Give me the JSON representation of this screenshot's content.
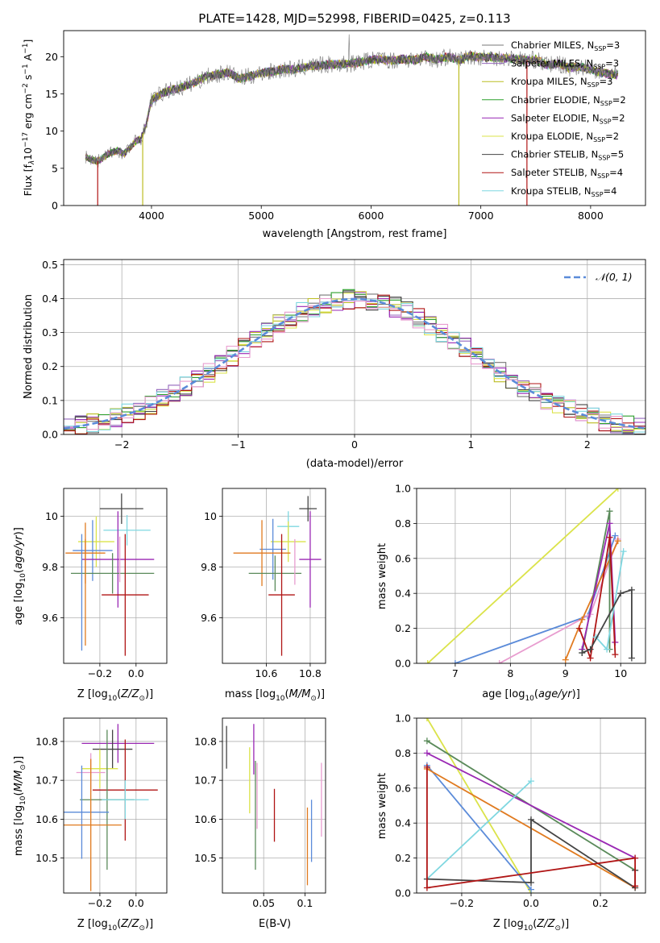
{
  "figure_title": "PLATE=1428, MJD=52998, FIBERID=0425, z=0.113",
  "colors": {
    "Chabrier MILES": "#777777",
    "Salpeter MILES": "#9467bd",
    "Kroupa MILES": "#bcbd22",
    "Chabrier ELODIE": "#2ca02c",
    "Salpeter ELODIE": "#9a28b4",
    "Kroupa ELODIE": "#dbe34a",
    "Chabrier STELIB": "#444444",
    "Salpeter STELIB": "#b01515",
    "Kroupa STELIB": "#7fd7e0",
    "normal_curve": "#5b8bd9"
  },
  "chart_data": [
    {
      "id": "spectrum",
      "type": "line",
      "title": "PLATE=1428, MJD=52998, FIBERID=0425, z=0.113",
      "xlabel": "wavelength [Angstrom, rest frame]",
      "ylabel_parts": [
        "Flux [f",
        "λ",
        "10",
        "−17",
        " erg cm",
        "−2",
        " s",
        "−1",
        " A",
        "−1",
        "]"
      ],
      "xlim": [
        3200,
        8500
      ],
      "ylim": [
        0,
        23.5
      ],
      "xticks": [
        4000,
        5000,
        6000,
        7000,
        8000
      ],
      "yticks": [
        0,
        5,
        10,
        15,
        20
      ],
      "grid": false,
      "legend": "right",
      "series_base": {
        "x": [
          3400,
          3450,
          3500,
          3550,
          3600,
          3650,
          3700,
          3750,
          3800,
          3850,
          3900,
          3950,
          4000,
          4100,
          4200,
          4300,
          4400,
          4500,
          4600,
          4700,
          4800,
          4900,
          5000,
          5100,
          5200,
          5300,
          5400,
          5500,
          5600,
          5700,
          5800,
          5900,
          6000,
          6100,
          6200,
          6300,
          6400,
          6500,
          6600,
          6700,
          6800,
          6900,
          7000,
          7100,
          7200,
          7300,
          7400,
          7500,
          7600,
          7700,
          7800,
          7900,
          8000,
          8100,
          8250
        ],
        "y": [
          6.6,
          6.2,
          5.9,
          6.3,
          6.9,
          7.2,
          7.4,
          6.9,
          7.7,
          8.6,
          8.9,
          10.8,
          14.2,
          15.1,
          15.6,
          16.0,
          16.6,
          17.3,
          17.6,
          17.9,
          17.0,
          17.4,
          17.8,
          18.0,
          18.3,
          18.3,
          18.6,
          18.8,
          18.9,
          19.0,
          19.0,
          19.3,
          19.6,
          19.6,
          19.5,
          19.7,
          19.5,
          20.0,
          19.6,
          20.0,
          19.5,
          20.1,
          19.9,
          20.0,
          19.8,
          19.8,
          19.5,
          19.6,
          18.9,
          19.1,
          18.5,
          18.7,
          18.3,
          17.8,
          17.6
        ]
      },
      "legend_entries": [
        {
          "label": "Chabrier MILES, N",
          "sub": "SSP",
          "tail": "=3"
        },
        {
          "label": "Salpeter MILES, N",
          "sub": "SSP",
          "tail": "=3"
        },
        {
          "label": "Kroupa MILES, N",
          "sub": "SSP",
          "tail": "=3"
        },
        {
          "label": "Chabrier ELODIE, N",
          "sub": "SSP",
          "tail": "=2"
        },
        {
          "label": "Salpeter ELODIE, N",
          "sub": "SSP",
          "tail": "=2"
        },
        {
          "label": "Kroupa ELODIE, N",
          "sub": "SSP",
          "tail": "=2"
        },
        {
          "label": "Chabrier STELIB, N",
          "sub": "SSP",
          "tail": "=5"
        },
        {
          "label": "Salpeter STELIB, N",
          "sub": "SSP",
          "tail": "=4"
        },
        {
          "label": "Kroupa STELIB, N",
          "sub": "SSP",
          "tail": "=4"
        }
      ]
    },
    {
      "id": "residuals",
      "type": "histogram",
      "xlabel": "(data-model)/error",
      "ylabel": "Normed distribution",
      "xlim": [
        -2.5,
        2.5
      ],
      "ylim": [
        0,
        0.515
      ],
      "xticks": [
        -2,
        -1,
        0,
        1,
        2
      ],
      "yticks": [
        0.0,
        0.1,
        0.2,
        0.3,
        0.4,
        0.5
      ],
      "grid": true,
      "legend": "top-right",
      "legend_label": "𝒩(0, 1)",
      "bin_edges_step": 0.1
    },
    {
      "id": "age_vs_Z",
      "type": "scatter",
      "xlabel_parts": [
        "Z [log",
        "10",
        "(",
        "Z/Z",
        "⊙",
        ")]"
      ],
      "ylabel_parts": [
        "age  [log",
        "10",
        "(",
        "age/yr",
        ")]"
      ],
      "xlim": [
        -0.4,
        0.17
      ],
      "ylim": [
        9.42,
        10.11
      ],
      "xticks": [
        -0.2,
        0.0
      ],
      "yticks": [
        9.6,
        9.8,
        10.0
      ],
      "grid": true,
      "points": [
        {
          "x": -0.08,
          "y": 10.03,
          "xerr": 0.12,
          "yerr": 0.06,
          "c": "#444444"
        },
        {
          "x": -0.05,
          "y": 9.945,
          "xerr": 0.13,
          "yerr": 0.06,
          "c": "#7fd7e0"
        },
        {
          "x": -0.22,
          "y": 9.9,
          "xerr": 0.1,
          "yerr": 0.1,
          "c": "#dbe34a"
        },
        {
          "x": -0.24,
          "y": 9.865,
          "xerr": 0.11,
          "yerr": 0.12,
          "c": "#5b8bd9"
        },
        {
          "x": -0.28,
          "y": 9.855,
          "xerr": 0.11,
          "yerr": 0.12,
          "c": "#e07a1f"
        },
        {
          "x": -0.1,
          "y": 9.83,
          "xerr": 0.2,
          "yerr": 0.19,
          "c": "#9a28b4"
        },
        {
          "x": -0.13,
          "y": 9.775,
          "xerr": 0.23,
          "yerr": 0.08,
          "c": "#5a8a5a"
        },
        {
          "x": -0.06,
          "y": 9.69,
          "xerr": 0.13,
          "yerr": 0.24,
          "c": "#b01515"
        },
        {
          "x": -0.3,
          "y": 9.7,
          "xerr": 0.0,
          "yerr": 0.23,
          "c": "#5b8bd9"
        },
        {
          "x": -0.28,
          "y": 9.7,
          "xerr": 0.0,
          "yerr": 0.21,
          "c": "#e07a1f"
        },
        {
          "x": -0.09,
          "y": 9.83,
          "xerr": 0.0,
          "yerr": 0.09,
          "c": "#e89ccf"
        }
      ]
    },
    {
      "id": "age_vs_mass",
      "type": "scatter",
      "xlabel_parts": [
        "mass [log",
        "10",
        "(",
        "M/M",
        "⊙",
        ")]"
      ],
      "ylim": [
        9.42,
        10.11
      ],
      "xlim": [
        10.4,
        10.87
      ],
      "xticks": [
        10.6,
        10.8
      ],
      "yticks": [
        9.6,
        9.8,
        10.0
      ],
      "grid": true,
      "points": [
        {
          "x": 10.79,
          "y": 10.03,
          "xerr": 0.04,
          "yerr": 0.05,
          "c": "#444444"
        },
        {
          "x": 10.7,
          "y": 9.96,
          "xerr": 0.05,
          "yerr": 0.06,
          "c": "#7fd7e0"
        },
        {
          "x": 10.7,
          "y": 9.9,
          "xerr": 0.08,
          "yerr": 0.08,
          "c": "#dbe34a"
        },
        {
          "x": 10.63,
          "y": 9.87,
          "xerr": 0.06,
          "yerr": 0.12,
          "c": "#5b8bd9"
        },
        {
          "x": 10.58,
          "y": 9.855,
          "xerr": 0.13,
          "yerr": 0.13,
          "c": "#e07a1f"
        },
        {
          "x": 10.8,
          "y": 9.83,
          "xerr": 0.05,
          "yerr": 0.19,
          "c": "#9a28b4"
        },
        {
          "x": 10.64,
          "y": 9.775,
          "xerr": 0.12,
          "yerr": 0.07,
          "c": "#5a8a5a"
        },
        {
          "x": 10.67,
          "y": 9.69,
          "xerr": 0.06,
          "yerr": 0.24,
          "c": "#b01515"
        },
        {
          "x": 10.73,
          "y": 9.82,
          "xerr": 0.0,
          "yerr": 0.09,
          "c": "#e89ccf"
        }
      ]
    },
    {
      "id": "weight_vs_age",
      "type": "line",
      "xlabel_parts": [
        "age  [log",
        "10",
        "(",
        "age/yr",
        ")]"
      ],
      "ylabel": "mass weight",
      "xlim": [
        6.3,
        10.45
      ],
      "ylim": [
        0,
        1.0
      ],
      "xticks": [
        7,
        8,
        9,
        10
      ],
      "yticks": [
        0.0,
        0.2,
        0.4,
        0.6,
        0.8,
        1.0
      ],
      "grid": true,
      "series": [
        {
          "c": "#dbe34a",
          "x": [
            6.5,
            9.95
          ],
          "y": [
            0.0,
            1.0
          ]
        },
        {
          "c": "#5b8bd9",
          "x": [
            7.0,
            9.4,
            9.9
          ],
          "y": [
            0.0,
            0.27,
            0.73
          ]
        },
        {
          "c": "#e89ccf",
          "x": [
            7.8,
            9.45,
            9.95
          ],
          "y": [
            0.0,
            0.28,
            0.71
          ]
        },
        {
          "c": "#e07a1f",
          "x": [
            9.0,
            9.3,
            9.95
          ],
          "y": [
            0.02,
            0.25,
            0.7
          ]
        },
        {
          "c": "#5a8a5a",
          "x": [
            9.3,
            9.8,
            9.8
          ],
          "y": [
            0.06,
            0.87,
            0.08
          ]
        },
        {
          "c": "#9a28b4",
          "x": [
            9.3,
            9.8,
            9.9
          ],
          "y": [
            0.08,
            0.8,
            0.12
          ]
        },
        {
          "c": "#b01515",
          "x": [
            9.25,
            9.45,
            9.8,
            9.9
          ],
          "y": [
            0.2,
            0.03,
            0.72,
            0.05
          ]
        },
        {
          "c": "#7fd7e0",
          "x": [
            9.55,
            9.75,
            10.05
          ],
          "y": [
            0.15,
            0.08,
            0.64
          ]
        },
        {
          "c": "#444444",
          "x": [
            9.3,
            9.45,
            10.0,
            10.2,
            10.2
          ],
          "y": [
            0.06,
            0.08,
            0.4,
            0.42,
            0.03
          ]
        }
      ]
    },
    {
      "id": "mass_vs_Z",
      "type": "scatter",
      "xlabel_parts": [
        "Z [log",
        "10",
        "(",
        "Z/Z",
        "⊙",
        ")]"
      ],
      "ylabel_parts": [
        "mass [log",
        "10",
        "(",
        "M/M",
        "⊙",
        ")]"
      ],
      "xlim": [
        -0.4,
        0.17
      ],
      "ylim": [
        10.41,
        10.86
      ],
      "xticks": [
        -0.2,
        0.0
      ],
      "yticks": [
        10.5,
        10.6,
        10.7,
        10.8
      ],
      "grid": true,
      "points": [
        {
          "x": -0.1,
          "y": 10.795,
          "xerr": 0.2,
          "yerr": 0.05,
          "c": "#9a28b4"
        },
        {
          "x": -0.13,
          "y": 10.78,
          "xerr": 0.11,
          "yerr": 0.05,
          "c": "#444444"
        },
        {
          "x": -0.2,
          "y": 10.73,
          "xerr": 0.1,
          "yerr": 0.05,
          "c": "#dbe34a"
        },
        {
          "x": -0.25,
          "y": 10.72,
          "xerr": 0.08,
          "yerr": 0.05,
          "c": "#e89ccf"
        },
        {
          "x": -0.06,
          "y": 10.675,
          "xerr": 0.18,
          "yerr": 0.13,
          "c": "#b01515"
        },
        {
          "x": -0.16,
          "y": 10.65,
          "xerr": 0.15,
          "yerr": 0.18,
          "c": "#5a8a5a"
        },
        {
          "x": -0.06,
          "y": 10.65,
          "xerr": 0.13,
          "yerr": 0.05,
          "c": "#7fd7e0"
        },
        {
          "x": -0.3,
          "y": 10.618,
          "xerr": 0.15,
          "yerr": 0.12,
          "c": "#5b8bd9"
        },
        {
          "x": -0.25,
          "y": 10.585,
          "xerr": 0.17,
          "yerr": 0.17,
          "c": "#e07a1f"
        }
      ]
    },
    {
      "id": "mass_vs_ebv",
      "type": "scatter",
      "xlabel": "E(B-V)",
      "xlim": [
        0.0,
        0.125
      ],
      "ylim": [
        10.41,
        10.86
      ],
      "xticks": [
        0.05,
        0.1
      ],
      "yticks": [
        10.5,
        10.6,
        10.7,
        10.8
      ],
      "grid": true,
      "points": [
        {
          "x": 0.005,
          "y": 10.785,
          "yerr": 0.055,
          "c": "#444444"
        },
        {
          "x": 0.033,
          "y": 10.7,
          "yerr": 0.085,
          "c": "#dbe34a"
        },
        {
          "x": 0.038,
          "y": 10.78,
          "yerr": 0.065,
          "c": "#9a28b4"
        },
        {
          "x": 0.04,
          "y": 10.61,
          "yerr": 0.14,
          "c": "#5a8a5a"
        },
        {
          "x": 0.042,
          "y": 10.66,
          "yerr": 0.085,
          "c": "#e89ccf"
        },
        {
          "x": 0.063,
          "y": 10.61,
          "yerr": 0.068,
          "c": "#b01515"
        },
        {
          "x": 0.103,
          "y": 10.53,
          "yerr": 0.1,
          "c": "#e07a1f"
        },
        {
          "x": 0.108,
          "y": 10.57,
          "yerr": 0.08,
          "c": "#5b8bd9"
        },
        {
          "x": 0.12,
          "y": 10.65,
          "yerr": 0.095,
          "c": "#e89ccf"
        }
      ]
    },
    {
      "id": "weight_vs_Z",
      "type": "line",
      "xlabel_parts": [
        "Z [log",
        "10",
        "(",
        "Z/Z",
        "⊙",
        ")]"
      ],
      "ylabel": "mass weight",
      "xlim": [
        -0.33,
        0.33
      ],
      "ylim": [
        0,
        1.0
      ],
      "xticks": [
        -0.2,
        0.0,
        0.2
      ],
      "yticks": [
        0.0,
        0.2,
        0.4,
        0.6,
        0.8,
        1.0
      ],
      "grid": true,
      "series": [
        {
          "c": "#dbe34a",
          "x": [
            -0.3,
            0.0
          ],
          "y": [
            1.0,
            0.0
          ]
        },
        {
          "c": "#5b8bd9",
          "x": [
            -0.3,
            0.0
          ],
          "y": [
            0.73,
            0.02
          ]
        },
        {
          "c": "#e07a1f",
          "x": [
            -0.3,
            0.3
          ],
          "y": [
            0.71,
            0.03
          ]
        },
        {
          "c": "#5a8a5a",
          "x": [
            -0.3,
            0.3
          ],
          "y": [
            0.87,
            0.13
          ]
        },
        {
          "c": "#9a28b4",
          "x": [
            -0.3,
            0.3
          ],
          "y": [
            0.8,
            0.2
          ]
        },
        {
          "c": "#7fd7e0",
          "x": [
            -0.3,
            0.0
          ],
          "y": [
            0.08,
            0.64
          ]
        },
        {
          "c": "#444444",
          "x": [
            -0.3,
            0.0,
            0.0,
            0.3,
            0.3
          ],
          "y": [
            0.08,
            0.06,
            0.42,
            0.03,
            0.13
          ]
        },
        {
          "c": "#b01515",
          "x": [
            -0.3,
            -0.3,
            0.3,
            0.3
          ],
          "y": [
            0.72,
            0.03,
            0.2,
            0.04
          ]
        }
      ]
    }
  ]
}
